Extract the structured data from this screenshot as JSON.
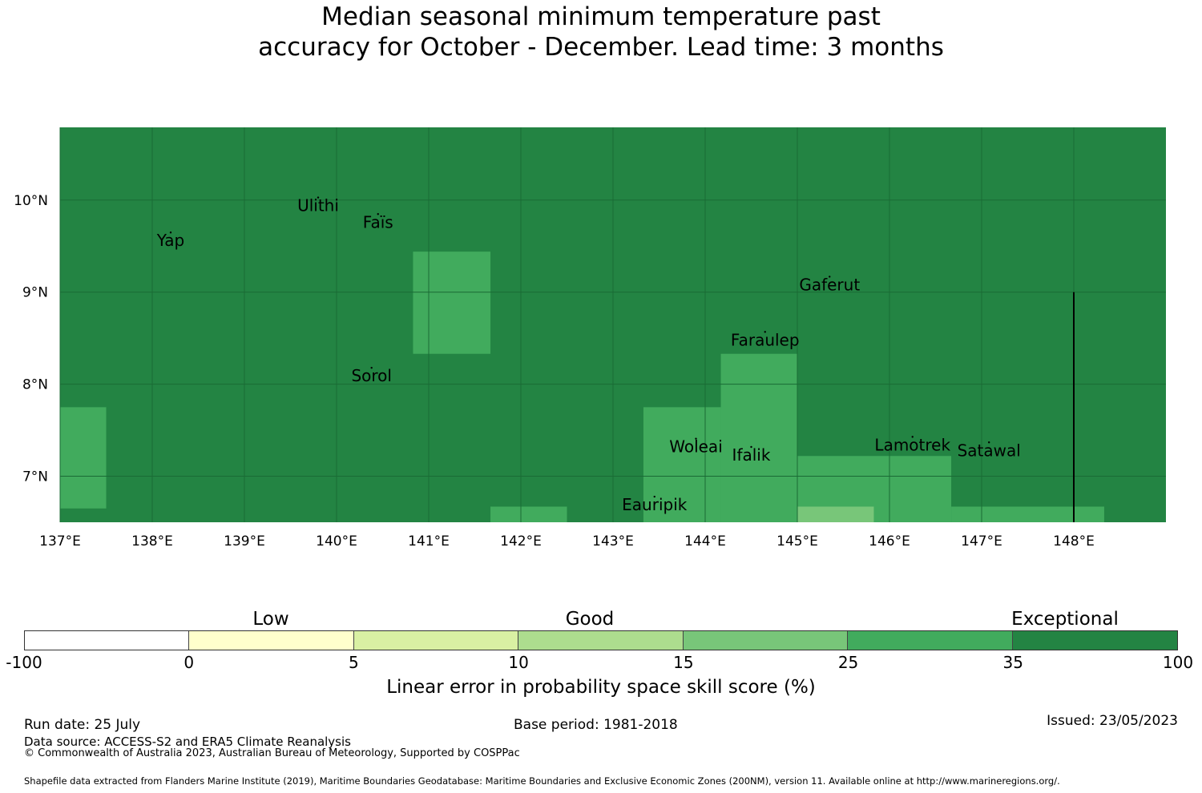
{
  "title": {
    "line1": "Median seasonal minimum temperature past",
    "line2": "accuracy for October - December. Lead time: 3 months"
  },
  "map": {
    "lon_ticks": [
      "137°E",
      "138°E",
      "139°E",
      "140°E",
      "141°E",
      "142°E",
      "143°E",
      "144°E",
      "145°E",
      "146°E",
      "147°E",
      "148°E"
    ],
    "lat_ticks": [
      "10°N",
      "9°N",
      "8°N",
      "7°N"
    ],
    "background_color": "#238443",
    "cells": [
      {
        "lon": [
          137.0,
          137.5
        ],
        "lat": [
          6.65,
          7.75
        ],
        "color": "#41ab5d"
      },
      {
        "lon": [
          140.83,
          141.67
        ],
        "lat": [
          8.33,
          9.44
        ],
        "color": "#41ab5d"
      },
      {
        "lon": [
          141.67,
          142.5
        ],
        "lat": [
          6.5,
          6.67
        ],
        "color": "#41ab5d"
      },
      {
        "lon": [
          143.33,
          144.17
        ],
        "lat": [
          6.5,
          7.75
        ],
        "color": "#41ab5d"
      },
      {
        "lon": [
          144.17,
          145.0
        ],
        "lat": [
          6.5,
          8.33
        ],
        "color": "#41ab5d"
      },
      {
        "lon": [
          145.0,
          146.67
        ],
        "lat": [
          6.5,
          7.22
        ],
        "color": "#41ab5d"
      },
      {
        "lon": [
          145.0,
          145.83
        ],
        "lat": [
          6.5,
          6.67
        ],
        "color": "#78c679"
      },
      {
        "lon": [
          146.67,
          148.33
        ],
        "lat": [
          6.5,
          6.67
        ],
        "color": "#41ab5d"
      }
    ],
    "boundary_line": {
      "lon": 148.0,
      "lat": [
        6.5,
        9.0
      ]
    },
    "islands": [
      {
        "name": "Yap",
        "lon": 138.2,
        "lat": 9.5
      },
      {
        "name": "Ulithi",
        "lon": 139.8,
        "lat": 9.88
      },
      {
        "name": "Faïs",
        "lon": 140.45,
        "lat": 9.7
      },
      {
        "name": "Gaferut",
        "lon": 145.35,
        "lat": 9.02
      },
      {
        "name": "Faraulep",
        "lon": 144.65,
        "lat": 8.42
      },
      {
        "name": "Sorol",
        "lon": 140.38,
        "lat": 8.03
      },
      {
        "name": "Woleai",
        "lon": 143.9,
        "lat": 7.26
      },
      {
        "name": "Ifalik",
        "lon": 144.5,
        "lat": 7.17
      },
      {
        "name": "Lamotrek",
        "lon": 146.25,
        "lat": 7.28
      },
      {
        "name": "Satawal",
        "lon": 147.08,
        "lat": 7.22
      },
      {
        "name": "Eauripik",
        "lon": 143.45,
        "lat": 6.63
      }
    ]
  },
  "legend": {
    "categories": [
      "Low",
      "Good",
      "Exceptional"
    ],
    "ticks": [
      "-100",
      "0",
      "5",
      "10",
      "15",
      "25",
      "35",
      "100"
    ],
    "colors": [
      "#ffffff",
      "#ffffcc",
      "#d9f0a3",
      "#addd8e",
      "#78c679",
      "#41ab5d",
      "#238443"
    ],
    "label": "Linear error in probability space skill score (%)"
  },
  "footer": {
    "run_date": "Run date: 25 July",
    "data_source": "Data source: ACCESS-S2 and ERA5 Climate Reanalysis",
    "copyright": "© Commonwealth of Australia 2023, Australian Bureau of Meteorology, Supported by COSPPac",
    "base_period": "Base period: 1981-2018",
    "issued": "Issued: 23/05/2023",
    "shapefile": "Shapefile data extracted from Flanders Marine Institute (2019), Maritime Boundaries Geodatabase: Maritime Boundaries and Exclusive Economic Zones (200NM), version 11. Available online at http://www.marineregions.org/."
  }
}
